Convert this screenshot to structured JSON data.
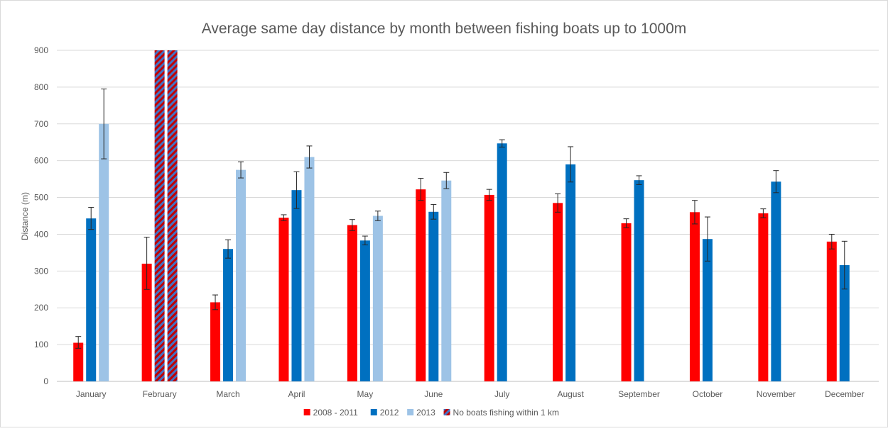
{
  "chart_data": {
    "type": "bar",
    "title": "Average same day distance by month between fishing boats up to 1000m",
    "xlabel": "",
    "ylabel": "Distance (m)",
    "ylim": [
      0,
      900
    ],
    "yticks": [
      0,
      100,
      200,
      300,
      400,
      500,
      600,
      700,
      800,
      900
    ],
    "grid": true,
    "legend_position": "bottom",
    "categories": [
      "January",
      "February",
      "March",
      "April",
      "May",
      "June",
      "July",
      "August",
      "September",
      "October",
      "November",
      "December"
    ],
    "series": [
      {
        "name": "2008 - 2011",
        "color": "#ff0000",
        "values": [
          105,
          320,
          215,
          445,
          425,
          522,
          507,
          485,
          430,
          460,
          457,
          380
        ],
        "err_low": [
          15,
          70,
          20,
          8,
          15,
          30,
          15,
          25,
          12,
          32,
          12,
          20
        ],
        "err_high": [
          17,
          72,
          20,
          8,
          15,
          30,
          15,
          25,
          12,
          32,
          12,
          20
        ]
      },
      {
        "name": "2012",
        "color": "#0070c0",
        "values": [
          443,
          null,
          360,
          520,
          383,
          461,
          647,
          590,
          547,
          387,
          543,
          316
        ],
        "err_low": [
          30,
          null,
          25,
          50,
          12,
          20,
          10,
          48,
          12,
          60,
          30,
          65
        ],
        "err_high": [
          30,
          null,
          25,
          50,
          12,
          20,
          10,
          48,
          12,
          60,
          30,
          65
        ]
      },
      {
        "name": "2013",
        "color": "#9dc3e6",
        "values": [
          700,
          null,
          575,
          610,
          450,
          546,
          null,
          null,
          null,
          null,
          null,
          null
        ],
        "err_low": [
          95,
          null,
          22,
          30,
          13,
          22,
          null,
          null,
          null,
          null,
          null,
          null
        ],
        "err_high": [
          95,
          null,
          22,
          30,
          13,
          22,
          null,
          null,
          null,
          null,
          null,
          null
        ]
      }
    ],
    "no_data_marker": {
      "name": "No boats fishing within 1 km",
      "colors": [
        "#c00000",
        "#4472c4"
      ],
      "categories": [
        "February"
      ],
      "series_slots": [
        1,
        2
      ]
    }
  }
}
